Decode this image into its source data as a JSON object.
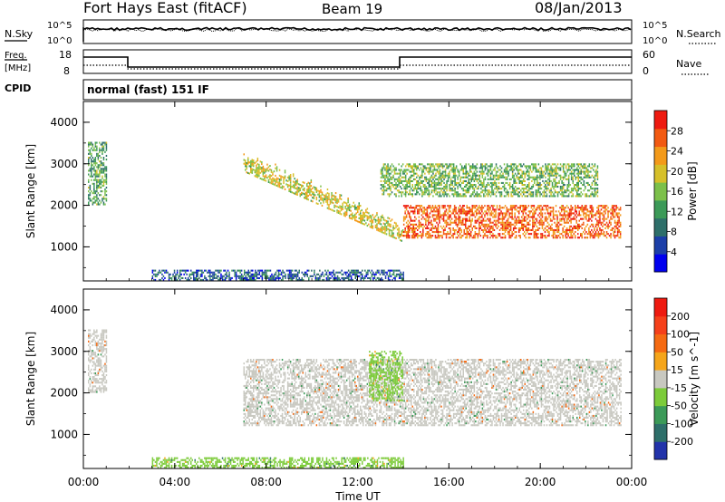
{
  "header": {
    "station": "Fort Hays East (fitACF)",
    "beam": "Beam 19",
    "date": "08/Jan/2013"
  },
  "noise_panel": {
    "left_label": "N.Sky",
    "right_label": "N.Search",
    "left_ticks": [
      "10^5",
      "10^0"
    ],
    "right_ticks": [
      "10^5",
      "10^0"
    ]
  },
  "freq_panel": {
    "left_label_1": "Freq.",
    "left_label_2": "[MHz]",
    "right_label": "Nave",
    "left_ticks": [
      "18",
      "8"
    ],
    "right_ticks": [
      "60",
      "0"
    ]
  },
  "cpid": {
    "label": "CPID",
    "value": "normal (fast) 151 IF"
  },
  "x_axis": {
    "title": "Time UT",
    "ticks": [
      "00:00",
      "04:00",
      "08:00",
      "12:00",
      "16:00",
      "20:00",
      "00:00"
    ]
  },
  "chart_data": [
    {
      "type": "heatmap",
      "title": "",
      "ylabel": "Slant Range [km]",
      "xlabel": "",
      "yticks": [
        "1000",
        "2000",
        "3000",
        "4000"
      ],
      "ylim": [
        180,
        4500
      ],
      "xlim_hours": [
        0,
        24
      ],
      "colorbar": {
        "label": "Power [dB]",
        "ticks": [
          "4",
          "8",
          "12",
          "16",
          "20",
          "24",
          "28"
        ],
        "range": [
          0,
          30
        ],
        "colors": [
          "#0000ee",
          "#1c3fa8",
          "#2e6f6a",
          "#3c9a58",
          "#7cc04a",
          "#d6c02a",
          "#f39a1a",
          "#f25a12",
          "#ee1a10"
        ]
      },
      "echo_regions": [
        {
          "name": "early echo",
          "t_start": 0.2,
          "t_end": 1.0,
          "r_lower": 2000,
          "r_upper": 3500,
          "power": 12
        },
        {
          "name": "descending band",
          "t_start": 7.0,
          "t_end": 14.0,
          "r_lower_start": 2800,
          "r_lower_end": 1100,
          "power": 18
        },
        {
          "name": "strong lower band",
          "t_start": 14.0,
          "t_end": 23.5,
          "r_lower": 1200,
          "r_upper": 2000,
          "power": 26
        },
        {
          "name": "upper band",
          "t_start": 13.0,
          "t_end": 22.5,
          "r_lower": 2200,
          "r_upper": 3000,
          "power": 14
        },
        {
          "name": "ground scatter low",
          "t_start": 3.0,
          "t_end": 14.0,
          "r_lower": 180,
          "r_upper": 450,
          "power": 6
        }
      ]
    },
    {
      "type": "heatmap",
      "title": "",
      "ylabel": "Slant Range [km]",
      "xlabel": "Time UT",
      "yticks": [
        "1000",
        "2000",
        "3000",
        "4000"
      ],
      "ylim": [
        180,
        4500
      ],
      "xlim_hours": [
        0,
        24
      ],
      "colorbar": {
        "label": "Velocity [m s^-1]",
        "ticks": [
          "200",
          "100",
          "50",
          "15",
          "-15",
          "-50",
          "-100",
          "-200"
        ],
        "range": [
          -250,
          250
        ],
        "colors": [
          "#2233aa",
          "#2e6f6a",
          "#3c9a58",
          "#7ccb3a",
          "#c8c8c0",
          "#f5a51a",
          "#f56a12",
          "#f5401a",
          "#ee1a10"
        ]
      },
      "echo_regions": [
        {
          "name": "early echo",
          "t_start": 0.2,
          "t_end": 1.0,
          "r_lower": 2000,
          "r_upper": 3500,
          "velocity": 0
        },
        {
          "name": "ground scatter band",
          "t_start": 7.0,
          "t_end": 23.5,
          "r_lower": 1200,
          "r_upper": 2800,
          "velocity": 0
        },
        {
          "name": "green feature",
          "t_start": 12.5,
          "t_end": 14.0,
          "r_lower": 1800,
          "r_upper": 3000,
          "velocity": 30
        },
        {
          "name": "low range",
          "t_start": 3.0,
          "t_end": 14.0,
          "r_lower": 180,
          "r_upper": 450,
          "velocity": 25
        }
      ]
    }
  ]
}
